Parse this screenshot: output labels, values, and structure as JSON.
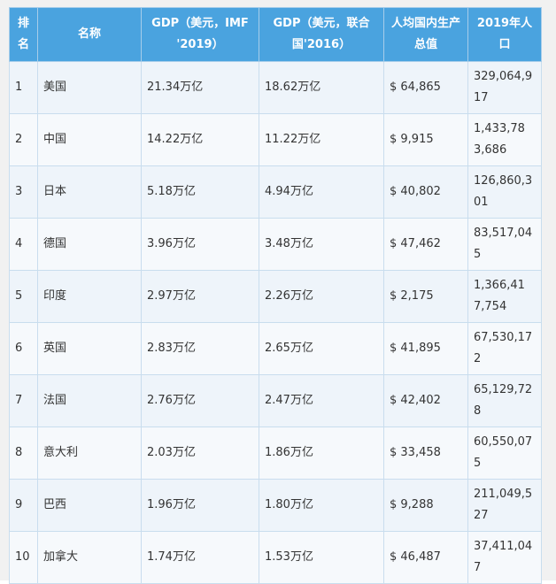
{
  "header": {
    "rank": "排名",
    "name": "名称",
    "gdp_imf": "GDP（美元，IMF '2019）",
    "gdp_un": "GDP（美元，联合国'2016）",
    "gdp_per_capita": "人均国内生产总值",
    "population": "2019年人口"
  },
  "rows": [
    {
      "rank": "1",
      "name": "美国",
      "gdp_imf": "21.34万亿",
      "gdp_un": "18.62万亿",
      "per_capita": "$ 64,865",
      "population": "329,064,917"
    },
    {
      "rank": "2",
      "name": "中国",
      "gdp_imf": "14.22万亿",
      "gdp_un": "11.22万亿",
      "per_capita": "$ 9,915",
      "population": "1,433,783,686"
    },
    {
      "rank": "3",
      "name": "日本",
      "gdp_imf": "5.18万亿",
      "gdp_un": "4.94万亿",
      "per_capita": "$ 40,802",
      "population": "126,860,301"
    },
    {
      "rank": "4",
      "name": "德国",
      "gdp_imf": "3.96万亿",
      "gdp_un": "3.48万亿",
      "per_capita": "$ 47,462",
      "population": "83,517,045"
    },
    {
      "rank": "5",
      "name": "印度",
      "gdp_imf": "2.97万亿",
      "gdp_un": "2.26万亿",
      "per_capita": "$ 2,175",
      "population": "1,366,417,754"
    },
    {
      "rank": "6",
      "name": "英国",
      "gdp_imf": "2.83万亿",
      "gdp_un": "2.65万亿",
      "per_capita": "$ 41,895",
      "population": "67,530,172"
    },
    {
      "rank": "7",
      "name": "法国",
      "gdp_imf": "2.76万亿",
      "gdp_un": "2.47万亿",
      "per_capita": "$ 42,402",
      "population": "65,129,728"
    },
    {
      "rank": "8",
      "name": "意大利",
      "gdp_imf": "2.03万亿",
      "gdp_un": "1.86万亿",
      "per_capita": "$ 33,458",
      "population": "60,550,075"
    },
    {
      "rank": "9",
      "name": "巴西",
      "gdp_imf": "1.96万亿",
      "gdp_un": "1.80万亿",
      "per_capita": "$ 9,288",
      "population": "211,049,527"
    },
    {
      "rank": "10",
      "name": "加拿大",
      "gdp_imf": "1.74万亿",
      "gdp_un": "1.53万亿",
      "per_capita": "$ 46,487",
      "population": "37,411,047"
    }
  ],
  "colors": {
    "header_bg": "#4aa3df",
    "header_text": "#ffffff",
    "row_bg": "#eef4fa",
    "border": "#c9ddee"
  }
}
